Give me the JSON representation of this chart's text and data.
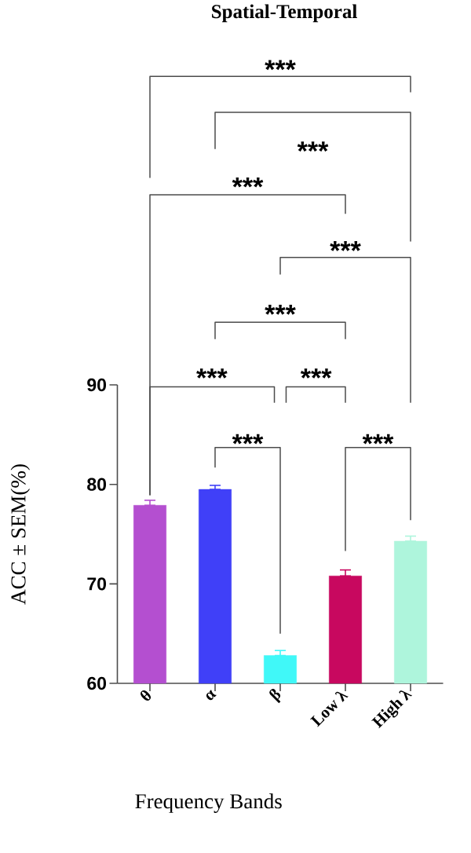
{
  "chart_data": {
    "type": "bar",
    "title": "Spatial-Temporal",
    "xlabel": "Frequency Bands",
    "ylabel": "ACC ± SEM(%)",
    "categories": [
      "θ",
      "α",
      "β",
      "Low λ",
      "High λ"
    ],
    "values": [
      77.9,
      79.5,
      62.8,
      70.8,
      74.3
    ],
    "errors": [
      [
        77.9,
        78.4
      ],
      [
        79.5,
        79.9
      ],
      [
        62.8,
        63.3
      ],
      [
        70.8,
        71.4
      ],
      [
        74.3,
        74.8
      ]
    ],
    "colors": [
      "#b44fd0",
      "#4040f8",
      "#40f8f8",
      "#c8085f",
      "#aef5dc"
    ],
    "ylim": [
      60,
      90
    ],
    "yticks": [
      60,
      70,
      80,
      90
    ],
    "annotations": [
      "***",
      "***",
      "***",
      "***",
      "***",
      "***",
      "***",
      "***",
      "***"
    ]
  }
}
